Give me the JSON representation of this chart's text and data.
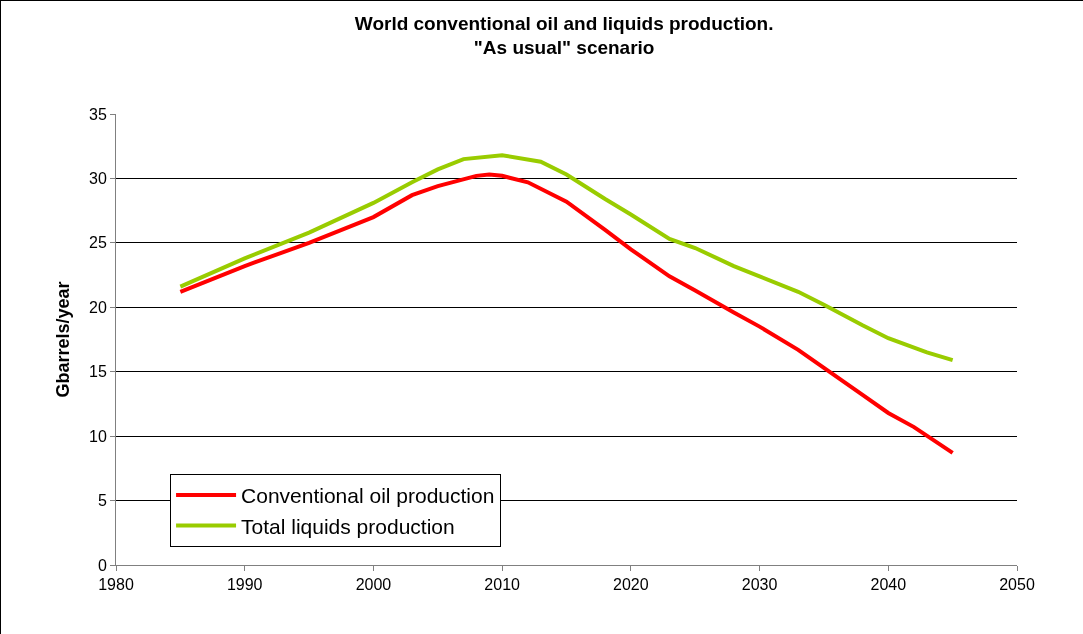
{
  "chart_data": {
    "type": "line",
    "title": "World conventional oil and liquids production.\n\"As usual\" scenario",
    "ylabel": "Gbarrels/year",
    "xlim": [
      1980,
      2050
    ],
    "xticks": [
      1980,
      1990,
      2000,
      2010,
      2020,
      2030,
      2040,
      2050
    ],
    "ylim": [
      0,
      35
    ],
    "yticks": [
      0,
      5,
      10,
      15,
      20,
      25,
      30,
      35
    ],
    "grid": "y",
    "legend": "bottom left",
    "marker": "none",
    "line_style": "solid",
    "series": [
      {
        "name": "Conventional oil production",
        "color": "#ff0000",
        "x": [
          1985,
          1990,
          1995,
          2000,
          2003,
          2005,
          2008,
          2009,
          2010,
          2012,
          2015,
          2018,
          2020,
          2023,
          2025,
          2028,
          2030,
          2033,
          2035,
          2038,
          2040,
          2042,
          2045
        ],
        "values": [
          21.2,
          23.2,
          25,
          27,
          28.7,
          29.4,
          30.2,
          30.3,
          30.2,
          29.7,
          28.2,
          26,
          24.5,
          22.4,
          21.3,
          19.6,
          18.5,
          16.7,
          15.3,
          13.2,
          11.8,
          10.7,
          8.7
        ]
      },
      {
        "name": "Total liquids production",
        "color": "#99cc00",
        "x": [
          1985,
          1990,
          1995,
          2000,
          2003,
          2005,
          2007,
          2010,
          2013,
          2015,
          2018,
          2020,
          2023,
          2025,
          2028,
          2030,
          2033,
          2035,
          2038,
          2040,
          2043,
          2045
        ],
        "values": [
          21.6,
          23.8,
          25.8,
          28.1,
          29.7,
          30.7,
          31.5,
          31.8,
          31.3,
          30.3,
          28.4,
          27.2,
          25.3,
          24.6,
          23.2,
          22.4,
          21.2,
          20.2,
          18.6,
          17.6,
          16.5,
          15.9
        ]
      }
    ]
  }
}
